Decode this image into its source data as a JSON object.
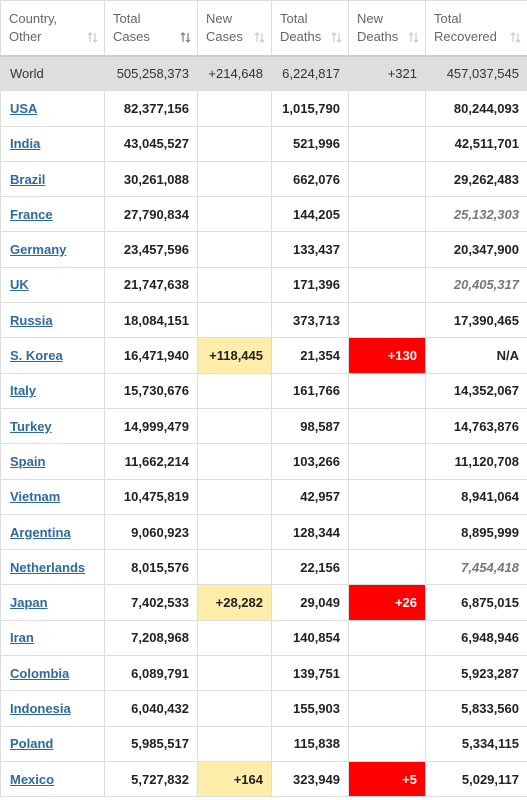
{
  "table": {
    "headers": [
      [
        "Country,",
        "Other"
      ],
      [
        "Total",
        "Cases"
      ],
      [
        "New",
        "Cases"
      ],
      [
        "Total",
        "Deaths"
      ],
      [
        "New",
        "Deaths"
      ],
      [
        "Total",
        "Recovered"
      ]
    ],
    "world": [
      "World",
      "505,258,373",
      "+214,648",
      "6,224,817",
      "+321",
      "457,037,545"
    ],
    "rows": [
      [
        "USA",
        "82,377,156",
        null,
        "1,015,790",
        null,
        "80,244,093"
      ],
      [
        "India",
        "43,045,527",
        null,
        "521,996",
        null,
        "42,511,701"
      ],
      [
        "Brazil",
        "30,261,088",
        null,
        "662,076",
        null,
        "29,262,483"
      ],
      [
        "France",
        "27,790,834",
        null,
        "144,205",
        null,
        "25,132,303"
      ],
      [
        "Germany",
        "23,457,596",
        null,
        "133,437",
        null,
        "20,347,900"
      ],
      [
        "UK",
        "21,747,638",
        null,
        "171,396",
        null,
        "20,405,317"
      ],
      [
        "Russia",
        "18,084,151",
        null,
        "373,713",
        null,
        "17,390,465"
      ],
      [
        "S. Korea",
        "16,471,940",
        "+118,445",
        "21,354",
        "+130",
        "N/A"
      ],
      [
        "Italy",
        "15,730,676",
        null,
        "161,766",
        null,
        "14,352,067"
      ],
      [
        "Turkey",
        "14,999,479",
        null,
        "98,587",
        null,
        "14,763,876"
      ],
      [
        "Spain",
        "11,662,214",
        null,
        "103,266",
        null,
        "11,120,708"
      ],
      [
        "Vietnam",
        "10,475,819",
        null,
        "42,957",
        null,
        "8,941,064"
      ],
      [
        "Argentina",
        "9,060,923",
        null,
        "128,344",
        null,
        "8,895,999"
      ],
      [
        "Netherlands",
        "8,015,576",
        null,
        "22,156",
        null,
        "7,454,418"
      ],
      [
        "Japan",
        "7,402,533",
        "+28,282",
        "29,049",
        "+26",
        "6,875,015"
      ],
      [
        "Iran",
        "7,208,968",
        null,
        "140,854",
        null,
        "6,948,946"
      ],
      [
        "Colombia",
        "6,089,791",
        null,
        "139,751",
        null,
        "5,923,287"
      ],
      [
        "Indonesia",
        "6,040,432",
        null,
        "155,903",
        null,
        "5,833,560"
      ],
      [
        "Poland",
        "5,985,517",
        null,
        "115,838",
        null,
        "5,334,115"
      ],
      [
        "Mexico",
        "5,727,832",
        "+164",
        "323,949",
        "+5",
        "5,029,117"
      ]
    ],
    "italic_recovered_rows": [
      3,
      5,
      13
    ],
    "new_cases_color": "#ffeeaa",
    "new_deaths_color": "#ff0000"
  }
}
